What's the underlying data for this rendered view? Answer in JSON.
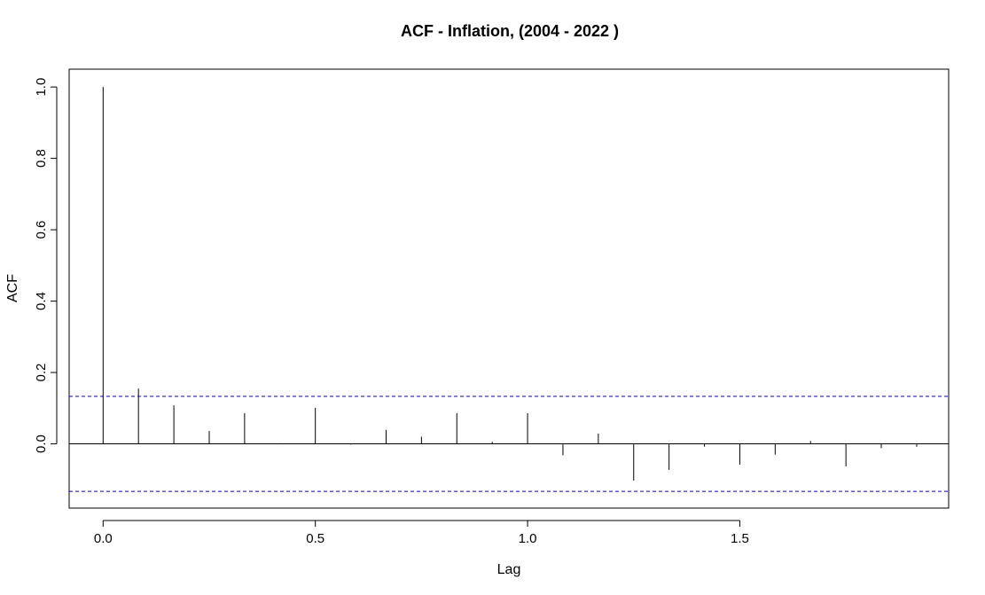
{
  "chart_data": {
    "type": "bar",
    "title": "ACF - Inflation, (2004 - 2022 )",
    "xlabel": "Lag",
    "ylabel": "ACF",
    "xlim": [
      -0.08,
      1.992
    ],
    "ylim": [
      -0.18,
      1.05
    ],
    "x_ticks": [
      0.0,
      0.5,
      1.0,
      1.5
    ],
    "x_tick_labels": [
      "0.0",
      "0.5",
      "1.0",
      "1.5"
    ],
    "y_ticks": [
      0.0,
      0.2,
      0.4,
      0.6,
      0.8,
      1.0
    ],
    "y_tick_labels": [
      "0.0",
      "0.2",
      "0.4",
      "0.6",
      "0.8",
      "1.0"
    ],
    "confidence_band": [
      0.133,
      -0.133
    ],
    "colors": {
      "stem": "#000000",
      "band": "#0000cd",
      "axis": "#000000"
    },
    "grid": false,
    "points": [
      {
        "lag": 0.0,
        "acf": 1.0
      },
      {
        "lag": 0.0833,
        "acf": 0.155
      },
      {
        "lag": 0.1667,
        "acf": 0.108
      },
      {
        "lag": 0.25,
        "acf": 0.036
      },
      {
        "lag": 0.3333,
        "acf": 0.086
      },
      {
        "lag": 0.4167,
        "acf": 0.002
      },
      {
        "lag": 0.5,
        "acf": 0.101
      },
      {
        "lag": 0.5833,
        "acf": -0.002
      },
      {
        "lag": 0.6667,
        "acf": 0.039
      },
      {
        "lag": 0.75,
        "acf": 0.02
      },
      {
        "lag": 0.8333,
        "acf": 0.086
      },
      {
        "lag": 0.9167,
        "acf": 0.006
      },
      {
        "lag": 1.0,
        "acf": 0.086
      },
      {
        "lag": 1.0833,
        "acf": -0.032
      },
      {
        "lag": 1.1667,
        "acf": 0.029
      },
      {
        "lag": 1.25,
        "acf": -0.103
      },
      {
        "lag": 1.3333,
        "acf": -0.073
      },
      {
        "lag": 1.4167,
        "acf": -0.008
      },
      {
        "lag": 1.5,
        "acf": -0.058
      },
      {
        "lag": 1.5833,
        "acf": -0.03
      },
      {
        "lag": 1.6667,
        "acf": 0.008
      },
      {
        "lag": 1.75,
        "acf": -0.063
      },
      {
        "lag": 1.8333,
        "acf": -0.012
      },
      {
        "lag": 1.9167,
        "acf": -0.008
      }
    ]
  }
}
